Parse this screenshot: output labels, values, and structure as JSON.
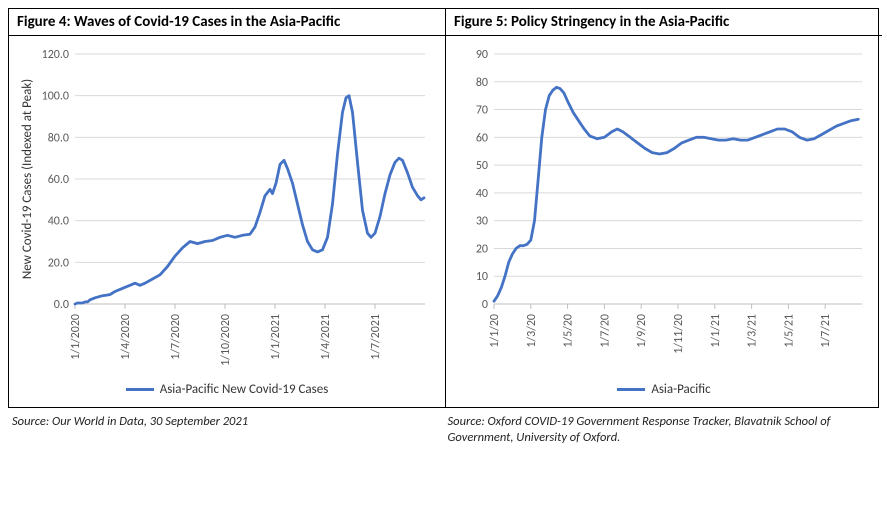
{
  "figure4": {
    "title": "Figure 4: Waves of Covid-19 Cases in the Asia-Pacific",
    "type": "line",
    "ylabel": "New Covid-19 Cases (Indexed at Peak)",
    "ylim": [
      0,
      120
    ],
    "ytick_step": 20,
    "ytick_decimals": 1,
    "x_labels": [
      "1/1/2020",
      "1/4/2020",
      "1/7/2020",
      "1/10/2020",
      "1/1/2021",
      "1/4/2021",
      "1/7/2021"
    ],
    "x_range_count": 8,
    "series_color": "#4472c4",
    "line_width": 2.8,
    "grid_color": "#d9d9d9",
    "axis_color": "#bfbfbf",
    "background_color": "#ffffff",
    "legend_label": "Asia-Pacific New Covid-19 Cases",
    "label_fontsize": 12,
    "points": [
      [
        0.0,
        0.0
      ],
      [
        0.05,
        0.5
      ],
      [
        0.1,
        0.5
      ],
      [
        0.15,
        0.5
      ],
      [
        0.2,
        1.0
      ],
      [
        0.25,
        1.0
      ],
      [
        0.3,
        2.0
      ],
      [
        0.4,
        3.0
      ],
      [
        0.55,
        4.0
      ],
      [
        0.7,
        4.5
      ],
      [
        0.8,
        6.0
      ],
      [
        0.9,
        7.0
      ],
      [
        1.0,
        8.0
      ],
      [
        1.1,
        9.0
      ],
      [
        1.2,
        10.0
      ],
      [
        1.3,
        9.0
      ],
      [
        1.4,
        10.0
      ],
      [
        1.55,
        12.0
      ],
      [
        1.7,
        14.0
      ],
      [
        1.85,
        18.0
      ],
      [
        2.0,
        23.0
      ],
      [
        2.15,
        27.0
      ],
      [
        2.3,
        30.0
      ],
      [
        2.45,
        29.0
      ],
      [
        2.6,
        30.0
      ],
      [
        2.75,
        30.5
      ],
      [
        2.9,
        32.0
      ],
      [
        3.05,
        33.0
      ],
      [
        3.2,
        32.0
      ],
      [
        3.35,
        33.0
      ],
      [
        3.5,
        33.5
      ],
      [
        3.6,
        37.0
      ],
      [
        3.7,
        44.0
      ],
      [
        3.8,
        52.0
      ],
      [
        3.9,
        55.0
      ],
      [
        3.95,
        53.0
      ],
      [
        4.02,
        58.0
      ],
      [
        4.1,
        67.0
      ],
      [
        4.18,
        69.0
      ],
      [
        4.25,
        65.0
      ],
      [
        4.35,
        58.0
      ],
      [
        4.45,
        48.0
      ],
      [
        4.55,
        38.0
      ],
      [
        4.65,
        30.0
      ],
      [
        4.75,
        26.0
      ],
      [
        4.85,
        25.0
      ],
      [
        4.95,
        26.0
      ],
      [
        5.05,
        32.0
      ],
      [
        5.15,
        48.0
      ],
      [
        5.25,
        72.0
      ],
      [
        5.35,
        92.0
      ],
      [
        5.42,
        99.0
      ],
      [
        5.48,
        100.0
      ],
      [
        5.55,
        92.0
      ],
      [
        5.65,
        68.0
      ],
      [
        5.75,
        45.0
      ],
      [
        5.85,
        34.0
      ],
      [
        5.92,
        32.0
      ],
      [
        6.0,
        34.0
      ],
      [
        6.1,
        42.0
      ],
      [
        6.2,
        53.0
      ],
      [
        6.3,
        62.0
      ],
      [
        6.4,
        68.0
      ],
      [
        6.48,
        70.0
      ],
      [
        6.55,
        69.0
      ],
      [
        6.65,
        63.0
      ],
      [
        6.75,
        56.0
      ],
      [
        6.85,
        52.0
      ],
      [
        6.92,
        50.0
      ],
      [
        6.98,
        51.0
      ]
    ],
    "source": "Source: Our World in Data, 30 September 2021"
  },
  "figure5": {
    "title": "Figure 5: Policy Stringency in the Asia-Pacific",
    "type": "line",
    "ylabel": "",
    "ylim": [
      0,
      90
    ],
    "ytick_step": 10,
    "ytick_decimals": 0,
    "x_labels": [
      "1/1/20",
      "1/3/20",
      "1/5/20",
      "1/7/20",
      "1/9/20",
      "1/11/20",
      "1/1/21",
      "1/3/21",
      "1/5/21",
      "1/7/21"
    ],
    "x_range_count": 11,
    "series_color": "#4472c4",
    "line_width": 2.8,
    "grid_color": "#d9d9d9",
    "axis_color": "#bfbfbf",
    "background_color": "#ffffff",
    "legend_label": "Asia-Pacific",
    "label_fontsize": 12,
    "points": [
      [
        0.0,
        1.0
      ],
      [
        0.1,
        3.0
      ],
      [
        0.2,
        6.0
      ],
      [
        0.3,
        10.0
      ],
      [
        0.4,
        15.0
      ],
      [
        0.5,
        18.0
      ],
      [
        0.6,
        20.0
      ],
      [
        0.7,
        21.0
      ],
      [
        0.8,
        21.0
      ],
      [
        0.9,
        21.5
      ],
      [
        1.0,
        23.0
      ],
      [
        1.1,
        30.0
      ],
      [
        1.2,
        45.0
      ],
      [
        1.3,
        60.0
      ],
      [
        1.4,
        70.0
      ],
      [
        1.5,
        75.0
      ],
      [
        1.6,
        77.0
      ],
      [
        1.7,
        78.0
      ],
      [
        1.8,
        77.5
      ],
      [
        1.9,
        76.0
      ],
      [
        2.0,
        73.0
      ],
      [
        2.15,
        69.0
      ],
      [
        2.3,
        66.0
      ],
      [
        2.45,
        63.0
      ],
      [
        2.6,
        60.5
      ],
      [
        2.8,
        59.5
      ],
      [
        3.0,
        60.0
      ],
      [
        3.2,
        62.0
      ],
      [
        3.35,
        63.0
      ],
      [
        3.5,
        62.0
      ],
      [
        3.7,
        60.0
      ],
      [
        3.9,
        58.0
      ],
      [
        4.1,
        56.0
      ],
      [
        4.3,
        54.5
      ],
      [
        4.5,
        54.0
      ],
      [
        4.7,
        54.5
      ],
      [
        4.9,
        56.0
      ],
      [
        5.1,
        58.0
      ],
      [
        5.3,
        59.0
      ],
      [
        5.5,
        60.0
      ],
      [
        5.7,
        60.0
      ],
      [
        5.9,
        59.5
      ],
      [
        6.1,
        59.0
      ],
      [
        6.3,
        59.0
      ],
      [
        6.5,
        59.5
      ],
      [
        6.7,
        59.0
      ],
      [
        6.9,
        59.0
      ],
      [
        7.1,
        60.0
      ],
      [
        7.3,
        61.0
      ],
      [
        7.5,
        62.0
      ],
      [
        7.7,
        63.0
      ],
      [
        7.9,
        63.0
      ],
      [
        8.1,
        62.0
      ],
      [
        8.3,
        60.0
      ],
      [
        8.5,
        59.0
      ],
      [
        8.7,
        59.5
      ],
      [
        8.9,
        61.0
      ],
      [
        9.1,
        62.5
      ],
      [
        9.3,
        64.0
      ],
      [
        9.5,
        65.0
      ],
      [
        9.7,
        66.0
      ],
      [
        9.9,
        66.5
      ]
    ],
    "source": "Source: Oxford COVID-19 Government Response Tracker, Blavatnik School of Government, University of Oxford."
  }
}
